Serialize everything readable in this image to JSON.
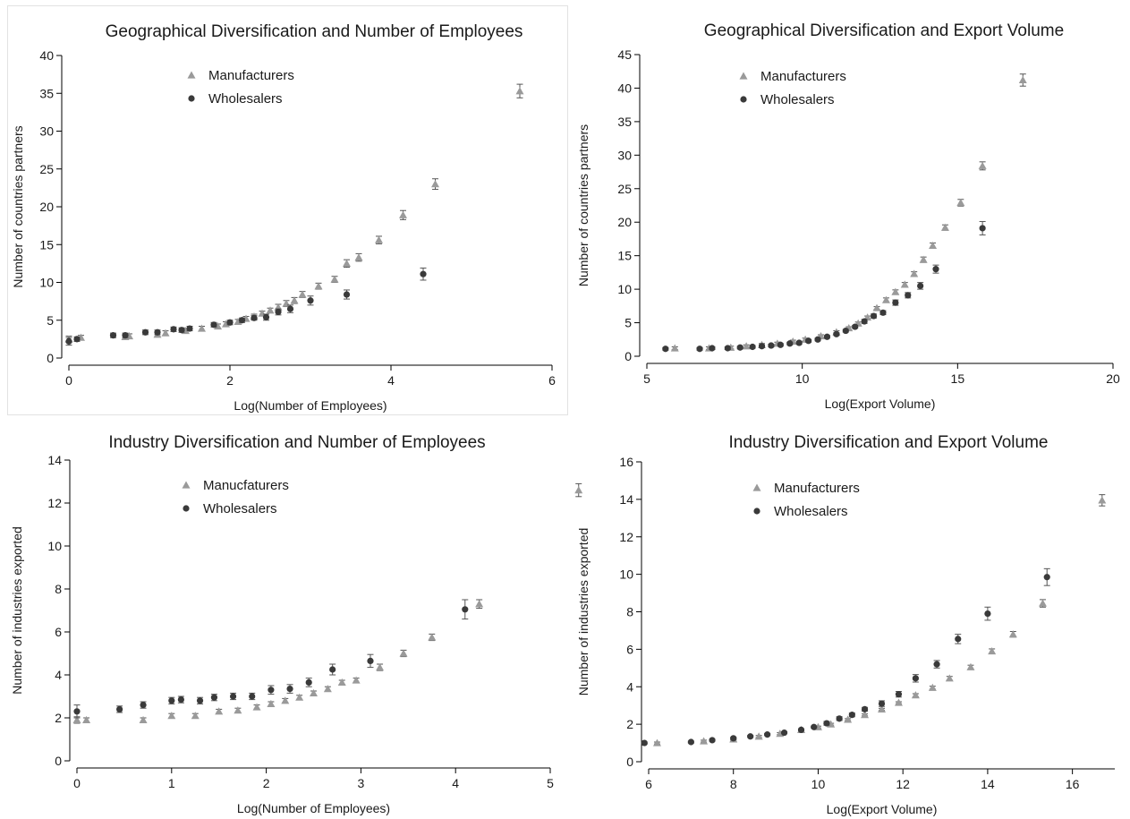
{
  "chart_data": [
    {
      "type": "scatter",
      "title": "Geographical Diversification and Number of Employees",
      "xlabel": "Log(Number of Employees)",
      "ylabel": "Number of countries partners",
      "xlim": [
        0,
        6
      ],
      "ylim": [
        0,
        40
      ],
      "xticks": [
        0,
        2,
        4,
        6
      ],
      "yticks": [
        0,
        5,
        10,
        15,
        20,
        25,
        30,
        35,
        40
      ],
      "legend_position": "upper-middle",
      "series": [
        {
          "name": "Manufacturers",
          "marker": "triangle",
          "color": "#9a9a9a",
          "x": [
            0,
            0.15,
            0.7,
            0.75,
            1.1,
            1.2,
            1.45,
            1.65,
            1.85,
            1.95,
            2.1,
            2.2,
            2.3,
            2.4,
            2.5,
            2.6,
            2.7,
            2.8,
            2.9,
            3.1,
            3.3,
            3.45,
            3.6,
            3.85,
            4.15,
            4.55,
            5.6
          ],
          "y": [
            2.5,
            2.7,
            2.8,
            2.9,
            3.1,
            3.3,
            3.6,
            3.9,
            4.2,
            4.5,
            4.8,
            5.2,
            5.5,
            5.9,
            6.3,
            6.7,
            7.2,
            7.6,
            8.4,
            9.5,
            10.4,
            12.5,
            13.3,
            15.6,
            18.9,
            23.0,
            35.3
          ],
          "err": [
            0.4,
            0.3,
            0.3,
            0.3,
            0.3,
            0.3,
            0.3,
            0.3,
            0.3,
            0.3,
            0.3,
            0.3,
            0.3,
            0.3,
            0.3,
            0.4,
            0.4,
            0.4,
            0.4,
            0.4,
            0.4,
            0.5,
            0.5,
            0.5,
            0.6,
            0.7,
            0.9
          ]
        },
        {
          "name": "Wholesalers",
          "marker": "circle",
          "color": "#3a3a3a",
          "x": [
            0,
            0.1,
            0.55,
            0.7,
            0.95,
            1.1,
            1.3,
            1.4,
            1.5,
            1.8,
            2.0,
            2.15,
            2.3,
            2.45,
            2.6,
            2.75,
            3.0,
            3.45,
            4.4
          ],
          "y": [
            2.2,
            2.5,
            3.0,
            3.0,
            3.4,
            3.4,
            3.8,
            3.7,
            3.9,
            4.4,
            4.7,
            5.0,
            5.3,
            5.4,
            6.1,
            6.5,
            7.6,
            8.4,
            11.1
          ],
          "err": [
            0.5,
            0.3,
            0.3,
            0.3,
            0.3,
            0.3,
            0.3,
            0.3,
            0.3,
            0.3,
            0.3,
            0.3,
            0.3,
            0.4,
            0.4,
            0.5,
            0.6,
            0.6,
            0.8
          ]
        }
      ]
    },
    {
      "type": "scatter",
      "title": "Geographical Diversification and Export Volume",
      "xlabel": "Log(Export Volume)",
      "ylabel": "Number of countries partners",
      "xlim": [
        5,
        20
      ],
      "ylim": [
        0,
        45
      ],
      "xticks": [
        5,
        10,
        15,
        20
      ],
      "yticks": [
        0,
        5,
        10,
        15,
        20,
        25,
        30,
        35,
        40,
        45
      ],
      "legend_position": "upper-middle",
      "series": [
        {
          "name": "Manufacturers",
          "marker": "triangle",
          "color": "#9a9a9a",
          "x": [
            5.9,
            7.0,
            7.7,
            8.2,
            8.7,
            9.2,
            9.7,
            10.1,
            10.6,
            11.1,
            11.5,
            11.8,
            12.1,
            12.4,
            12.7,
            13.0,
            13.3,
            13.6,
            13.9,
            14.2,
            14.6,
            15.1,
            15.8,
            17.1
          ],
          "y": [
            1.2,
            1.2,
            1.3,
            1.5,
            1.7,
            1.9,
            2.2,
            2.5,
            3.0,
            3.6,
            4.2,
            4.9,
            5.8,
            7.2,
            8.4,
            9.6,
            10.7,
            12.3,
            14.4,
            16.5,
            19.2,
            22.9,
            28.4,
            41.2
          ],
          "err": [
            0.2,
            0.2,
            0.2,
            0.2,
            0.2,
            0.2,
            0.2,
            0.2,
            0.2,
            0.2,
            0.2,
            0.2,
            0.2,
            0.2,
            0.3,
            0.3,
            0.3,
            0.3,
            0.4,
            0.4,
            0.4,
            0.5,
            0.6,
            0.9
          ]
        },
        {
          "name": "Wholesalers",
          "marker": "circle",
          "color": "#3a3a3a",
          "x": [
            5.6,
            6.7,
            7.1,
            7.6,
            8.0,
            8.4,
            8.7,
            9.0,
            9.3,
            9.6,
            9.9,
            10.2,
            10.5,
            10.8,
            11.1,
            11.4,
            11.7,
            12.0,
            12.3,
            12.6,
            13.0,
            13.4,
            13.8,
            14.3,
            15.8
          ],
          "y": [
            1.1,
            1.1,
            1.2,
            1.2,
            1.3,
            1.4,
            1.5,
            1.6,
            1.7,
            1.9,
            2.0,
            2.3,
            2.5,
            2.9,
            3.3,
            3.8,
            4.4,
            5.2,
            6.0,
            6.5,
            8.0,
            9.1,
            10.5,
            13.0,
            19.1
          ],
          "err": [
            0.2,
            0.2,
            0.2,
            0.2,
            0.2,
            0.2,
            0.2,
            0.2,
            0.2,
            0.2,
            0.2,
            0.2,
            0.2,
            0.2,
            0.2,
            0.2,
            0.2,
            0.3,
            0.3,
            0.3,
            0.4,
            0.4,
            0.5,
            0.6,
            1.0
          ]
        }
      ]
    },
    {
      "type": "scatter",
      "title": "Industry Diversification and Number of Employees",
      "xlabel": "Log(Number of Employees)",
      "ylabel": "Number of  industries exported",
      "xlim": [
        0,
        5
      ],
      "ylim": [
        0,
        14
      ],
      "xticks": [
        0,
        1,
        2,
        3,
        4,
        5
      ],
      "yticks": [
        0,
        2,
        4,
        6,
        8,
        10,
        12,
        14
      ],
      "legend_position": "upper-middle",
      "series": [
        {
          "name": "Manucfaturers",
          "marker": "triangle",
          "color": "#9a9a9a",
          "x": [
            0,
            0.1,
            0.7,
            1.0,
            1.25,
            1.5,
            1.7,
            1.9,
            2.05,
            2.2,
            2.35,
            2.5,
            2.65,
            2.8,
            2.95,
            3.2,
            3.45,
            3.75,
            4.25,
            5.3
          ],
          "y": [
            1.9,
            1.9,
            1.9,
            2.1,
            2.1,
            2.3,
            2.35,
            2.5,
            2.65,
            2.8,
            2.95,
            3.15,
            3.35,
            3.65,
            3.75,
            4.35,
            5.0,
            5.75,
            7.3,
            12.6
          ],
          "err": [
            0.15,
            0.1,
            0.1,
            0.1,
            0.1,
            0.1,
            0.1,
            0.1,
            0.1,
            0.1,
            0.1,
            0.1,
            0.1,
            0.1,
            0.1,
            0.15,
            0.15,
            0.15,
            0.2,
            0.3
          ]
        },
        {
          "name": "Wholesalers",
          "marker": "circle",
          "color": "#3a3a3a",
          "x": [
            0,
            0.45,
            0.7,
            1.0,
            1.1,
            1.3,
            1.45,
            1.65,
            1.85,
            2.05,
            2.25,
            2.45,
            2.7,
            3.1,
            4.1
          ],
          "y": [
            2.3,
            2.4,
            2.6,
            2.8,
            2.85,
            2.8,
            2.95,
            3.0,
            3.0,
            3.3,
            3.35,
            3.65,
            4.25,
            4.65,
            7.05
          ],
          "err": [
            0.3,
            0.15,
            0.15,
            0.15,
            0.15,
            0.15,
            0.15,
            0.15,
            0.15,
            0.2,
            0.2,
            0.2,
            0.25,
            0.3,
            0.45
          ]
        }
      ]
    },
    {
      "type": "scatter",
      "title": "Industry Diversification and Export Volume",
      "xlabel": "Log(Export Volume)",
      "ylabel": "Number of industries exported",
      "xlim": [
        6,
        17
      ],
      "ylim": [
        0,
        16
      ],
      "xticks": [
        6,
        8,
        10,
        12,
        14,
        16
      ],
      "yticks": [
        0,
        2,
        4,
        6,
        8,
        10,
        12,
        14,
        16
      ],
      "legend_position": "upper-middle",
      "series": [
        {
          "name": "Manufacturers",
          "marker": "triangle",
          "color": "#9a9a9a",
          "x": [
            6.2,
            7.3,
            8.0,
            8.6,
            9.1,
            9.6,
            10.0,
            10.3,
            10.7,
            11.1,
            11.5,
            11.9,
            12.3,
            12.7,
            13.1,
            13.6,
            14.1,
            14.6,
            15.3,
            16.7
          ],
          "y": [
            1.0,
            1.1,
            1.2,
            1.35,
            1.5,
            1.7,
            1.85,
            2.0,
            2.25,
            2.5,
            2.8,
            3.15,
            3.55,
            3.95,
            4.45,
            5.05,
            5.9,
            6.8,
            8.45,
            13.95
          ],
          "err": [
            0.05,
            0.05,
            0.05,
            0.05,
            0.05,
            0.05,
            0.05,
            0.05,
            0.05,
            0.05,
            0.05,
            0.05,
            0.08,
            0.08,
            0.1,
            0.1,
            0.12,
            0.15,
            0.2,
            0.3
          ]
        },
        {
          "name": "Wholesalers",
          "marker": "circle",
          "color": "#3a3a3a",
          "x": [
            5.9,
            7.0,
            7.5,
            8.0,
            8.4,
            8.8,
            9.2,
            9.6,
            9.9,
            10.2,
            10.5,
            10.8,
            11.1,
            11.5,
            11.9,
            12.3,
            12.8,
            13.3,
            14.0,
            15.4
          ],
          "y": [
            1.0,
            1.05,
            1.15,
            1.25,
            1.35,
            1.45,
            1.55,
            1.7,
            1.85,
            2.05,
            2.3,
            2.5,
            2.8,
            3.1,
            3.6,
            4.45,
            5.2,
            6.55,
            7.9,
            9.85
          ],
          "err": [
            0.05,
            0.05,
            0.05,
            0.05,
            0.05,
            0.05,
            0.05,
            0.05,
            0.05,
            0.1,
            0.1,
            0.1,
            0.1,
            0.15,
            0.15,
            0.2,
            0.2,
            0.25,
            0.35,
            0.45
          ]
        }
      ]
    }
  ]
}
